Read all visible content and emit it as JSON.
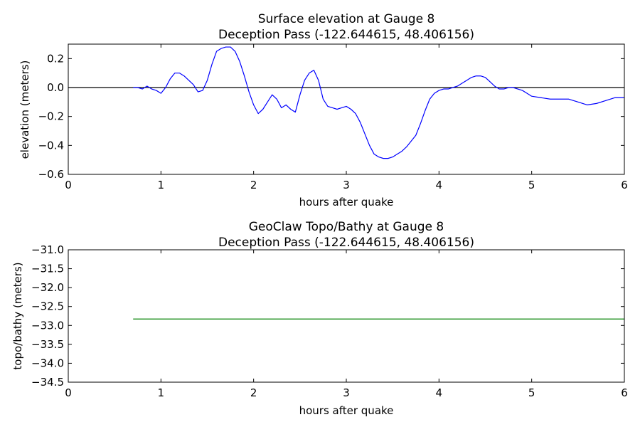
{
  "chart_data": [
    {
      "type": "line",
      "title_line1": "Surface elevation at Gauge 8",
      "title_line2": "Deception Pass  (-122.644615, 48.406156)",
      "xlabel": "hours after quake",
      "ylabel": "elevation (meters)",
      "xlim": [
        0,
        6
      ],
      "ylim": [
        -0.6,
        0.3
      ],
      "xticks": [
        "0",
        "1",
        "2",
        "3",
        "4",
        "5",
        "6"
      ],
      "yticks": [
        "−0.6",
        "−0.4",
        "−0.2",
        "0.0",
        "0.2"
      ],
      "ytick_values": [
        -0.6,
        -0.4,
        -0.2,
        0.0,
        0.2
      ],
      "reference_line": 0.0,
      "grid": false,
      "series": [
        {
          "color": "#0000ff",
          "x": [
            0.7,
            0.75,
            0.8,
            0.85,
            0.9,
            0.95,
            1.0,
            1.05,
            1.1,
            1.15,
            1.2,
            1.25,
            1.3,
            1.35,
            1.4,
            1.45,
            1.5,
            1.55,
            1.6,
            1.65,
            1.7,
            1.75,
            1.8,
            1.85,
            1.9,
            1.95,
            2.0,
            2.05,
            2.1,
            2.15,
            2.2,
            2.25,
            2.3,
            2.35,
            2.4,
            2.45,
            2.5,
            2.55,
            2.6,
            2.65,
            2.7,
            2.75,
            2.8,
            2.85,
            2.9,
            2.95,
            3.0,
            3.05,
            3.1,
            3.15,
            3.2,
            3.25,
            3.3,
            3.35,
            3.4,
            3.45,
            3.5,
            3.55,
            3.6,
            3.65,
            3.7,
            3.75,
            3.8,
            3.85,
            3.9,
            3.95,
            4.0,
            4.05,
            4.1,
            4.15,
            4.2,
            4.25,
            4.3,
            4.35,
            4.4,
            4.45,
            4.5,
            4.55,
            4.6,
            4.65,
            4.7,
            4.75,
            4.8,
            4.85,
            4.9,
            4.95,
            5.0,
            5.1,
            5.2,
            5.3,
            5.4,
            5.5,
            5.6,
            5.7,
            5.8,
            5.9,
            6.0
          ],
          "y": [
            0.0,
            0.0,
            -0.01,
            0.01,
            -0.01,
            -0.02,
            -0.04,
            0.0,
            0.06,
            0.1,
            0.1,
            0.08,
            0.05,
            0.02,
            -0.03,
            -0.02,
            0.05,
            0.16,
            0.25,
            0.27,
            0.28,
            0.28,
            0.25,
            0.18,
            0.08,
            -0.03,
            -0.12,
            -0.18,
            -0.15,
            -0.1,
            -0.05,
            -0.08,
            -0.14,
            -0.12,
            -0.15,
            -0.17,
            -0.05,
            0.05,
            0.1,
            0.12,
            0.05,
            -0.08,
            -0.13,
            -0.14,
            -0.15,
            -0.14,
            -0.13,
            -0.15,
            -0.18,
            -0.24,
            -0.32,
            -0.4,
            -0.46,
            -0.48,
            -0.49,
            -0.49,
            -0.48,
            -0.46,
            -0.44,
            -0.41,
            -0.37,
            -0.33,
            -0.25,
            -0.16,
            -0.08,
            -0.04,
            -0.02,
            -0.01,
            -0.01,
            0.0,
            0.01,
            0.03,
            0.05,
            0.07,
            0.08,
            0.08,
            0.07,
            0.04,
            0.01,
            -0.01,
            -0.01,
            0.0,
            0.0,
            -0.01,
            -0.02,
            -0.04,
            -0.06,
            -0.07,
            -0.08,
            -0.08,
            -0.08,
            -0.1,
            -0.12,
            -0.11,
            -0.09,
            -0.07,
            -0.07
          ]
        }
      ]
    },
    {
      "type": "line",
      "title_line1": "GeoClaw Topo/Bathy at Gauge 8",
      "title_line2": "Deception Pass  (-122.644615, 48.406156)",
      "xlabel": "hours after quake",
      "ylabel": "topo/bathy (meters)",
      "xlim": [
        0,
        6
      ],
      "ylim": [
        -34.5,
        -31.0
      ],
      "xticks": [
        "0",
        "1",
        "2",
        "3",
        "4",
        "5",
        "6"
      ],
      "yticks": [
        "−34.5",
        "−34.0",
        "−33.5",
        "−33.0",
        "−32.5",
        "−32.0",
        "−31.5",
        "−31.0"
      ],
      "ytick_values": [
        -34.5,
        -34.0,
        -33.5,
        -33.0,
        -32.5,
        -32.0,
        -31.5,
        -31.0
      ],
      "grid": false,
      "series": [
        {
          "color": "#008000",
          "x": [
            0.7,
            6.0
          ],
          "y": [
            -32.83,
            -32.83
          ]
        }
      ]
    }
  ]
}
